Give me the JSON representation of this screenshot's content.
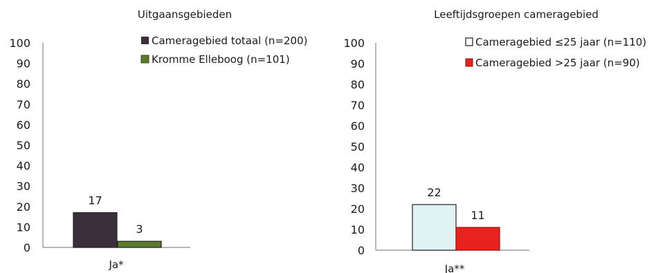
{
  "chart_data": [
    {
      "type": "bar",
      "title": "Uitgaansgebieden",
      "categories": [
        "Ja*"
      ],
      "ylim": [
        0,
        100
      ],
      "yticks": [
        "0",
        "10",
        "20",
        "30",
        "40",
        "50",
        "60",
        "70",
        "80",
        "90",
        "100"
      ],
      "series": [
        {
          "name": "Cameragebied totaal (n=200)",
          "values": [
            17
          ],
          "color": "#3a2f3a"
        },
        {
          "name": "Kromme Elleboog (n=101)",
          "values": [
            3
          ],
          "color": "#5b7a2a"
        }
      ],
      "data_labels": [
        "17",
        "3"
      ],
      "grid": false,
      "legend": "top-right"
    },
    {
      "type": "bar",
      "title": "Leeftijdsgroepen cameragebied",
      "categories": [
        "Ja**"
      ],
      "ylim": [
        0,
        100
      ],
      "yticks": [
        "0",
        "10",
        "20",
        "30",
        "40",
        "50",
        "60",
        "70",
        "80",
        "90",
        "100"
      ],
      "series": [
        {
          "name": "Cameragebied ≤25 jaar (n=110)",
          "values": [
            22
          ],
          "color": "#dff3f5"
        },
        {
          "name": "Cameragebied >25 jaar (n=90)",
          "values": [
            11
          ],
          "color": "#e8221f"
        }
      ],
      "data_labels": [
        "22",
        "11"
      ],
      "grid": false,
      "legend": "top-right"
    }
  ]
}
